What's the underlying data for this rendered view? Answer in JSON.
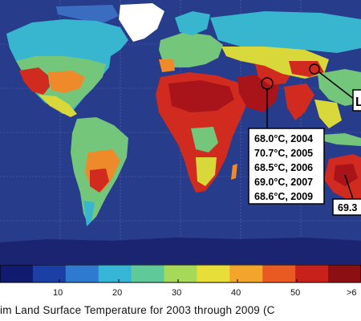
{
  "map": {
    "annotations": {
      "records": [
        {
          "label": "68.0°C, 2004"
        },
        {
          "label": "70.7°C, 2005"
        },
        {
          "label": "68.5°C, 2006"
        },
        {
          "label": "69.0°C, 2007"
        },
        {
          "label": "68.6°C, 2009"
        }
      ],
      "australia_record": "69.3",
      "east_asia_label": "L"
    },
    "colors": {
      "ocean": "#283c8c",
      "cold": "#2f6fc6",
      "cool": "#38b6cf",
      "mild": "#74c67a",
      "warm": "#d8d83a",
      "hot": "#ef8a2a",
      "very_hot": "#d12a1e",
      "extreme": "#a8141a"
    }
  },
  "colorbar": {
    "tick_labels": [
      "10",
      "20",
      "30",
      "40",
      "50",
      ">6"
    ],
    "colors": [
      "#101a6e",
      "#1c3fa6",
      "#2e7ad1",
      "#35b6d6",
      "#5fc99a",
      "#a6d958",
      "#e8de3a",
      "#f2a52a",
      "#e85a22",
      "#c8201b",
      "#8c0f14"
    ]
  },
  "caption": "im Land Surface Temperature for 2003 through 2009 (C"
}
